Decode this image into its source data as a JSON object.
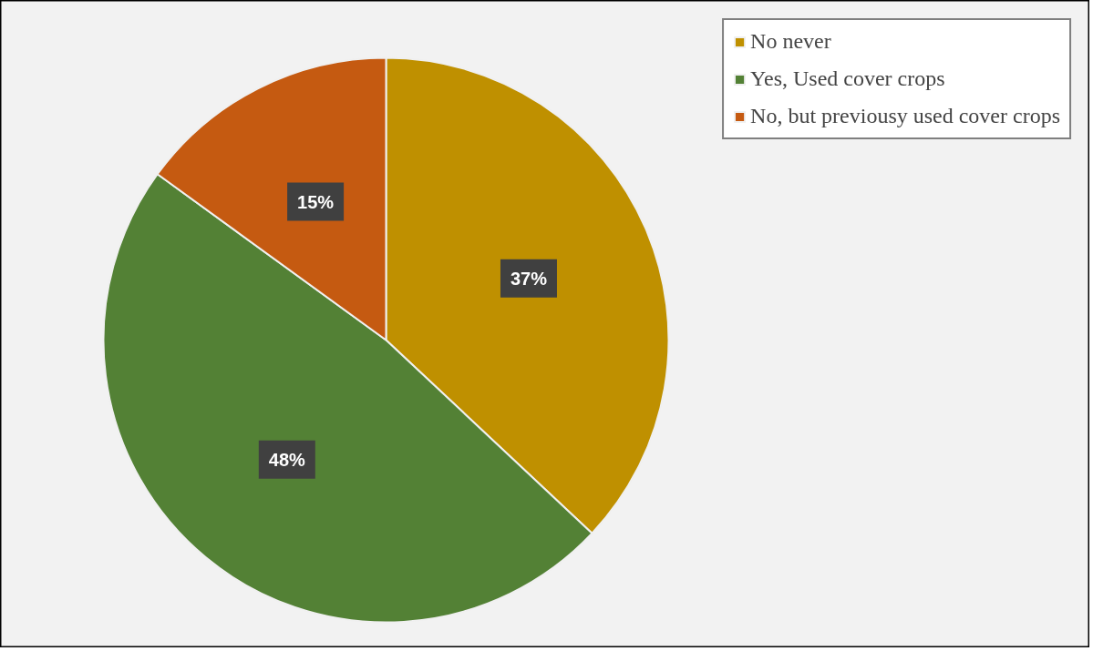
{
  "chart_data": {
    "type": "pie",
    "categories": [
      "No never",
      "Yes, Used cover crops",
      "No, but previousy used cover crops"
    ],
    "values": [
      37,
      48,
      15
    ],
    "colors": [
      "#bf9000",
      "#538135",
      "#c55a11"
    ],
    "value_labels": [
      "37%",
      "48%",
      "15%"
    ],
    "legend": "top right"
  }
}
